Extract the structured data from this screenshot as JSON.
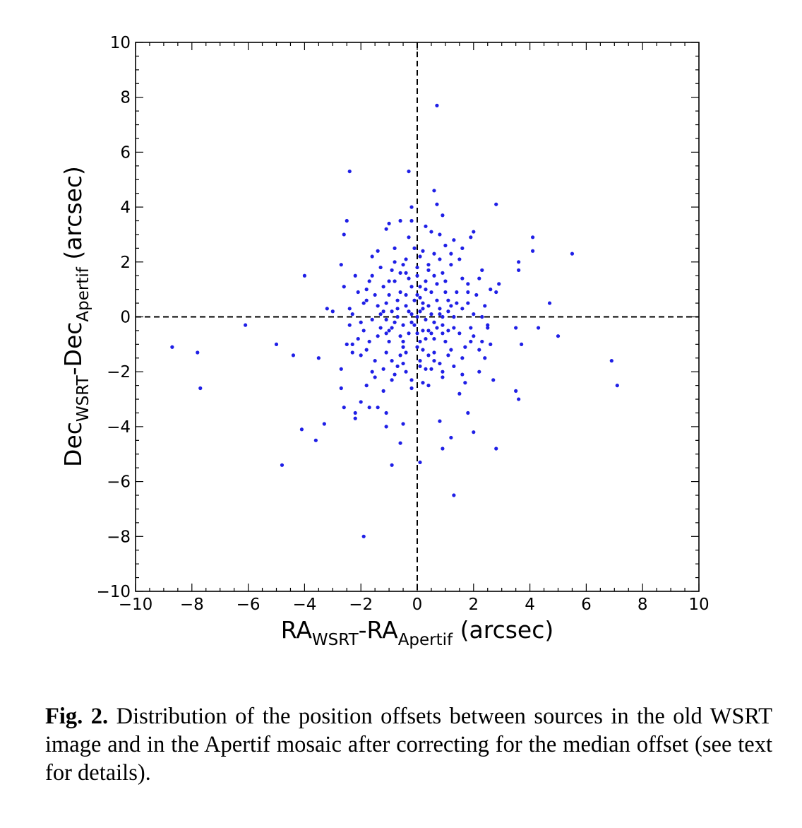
{
  "figure": {
    "caption_label": "Fig. 2.",
    "caption_text": "Distribution of the position offsets between sources in the old WSRT image and in the Apertif mosaic after correcting for the median offset (see text for details)."
  },
  "chart_data": {
    "type": "scatter",
    "xlabel": {
      "main1": "RA",
      "sub1": "WSRT",
      "mid": "-RA",
      "sub2": "Apertif",
      "tail": " (arcsec)"
    },
    "ylabel": {
      "main1": "Dec",
      "sub1": "WSRT",
      "mid": "-Dec",
      "sub2": "Apertif",
      "tail": " (arcsec)"
    },
    "xlim": [
      -10,
      10
    ],
    "ylim": [
      -10,
      10
    ],
    "xticks": [
      -10,
      -8,
      -6,
      -4,
      -2,
      0,
      2,
      4,
      6,
      8,
      10
    ],
    "yticks": [
      -10,
      -8,
      -6,
      -4,
      -2,
      0,
      2,
      4,
      6,
      8,
      10
    ],
    "xtick_labels": [
      "−10",
      "−8",
      "−6",
      "−4",
      "−2",
      "0",
      "2",
      "4",
      "6",
      "8",
      "10"
    ],
    "ytick_labels": [
      "−10",
      "−8",
      "−6",
      "−4",
      "−2",
      "0",
      "2",
      "4",
      "6",
      "8",
      "10"
    ],
    "grid": false,
    "reference_lines": {
      "x": 0,
      "y": 0,
      "style": "dashed"
    },
    "point_color": "#1f1fe6",
    "series": [
      {
        "points": [
          [
            -8.7,
            -1.1
          ],
          [
            -7.8,
            -1.3
          ],
          [
            -7.7,
            -2.6
          ],
          [
            -6.1,
            -0.3
          ],
          [
            -5.0,
            -1.0
          ],
          [
            -4.8,
            -5.4
          ],
          [
            -4.4,
            -1.4
          ],
          [
            -4.1,
            -4.1
          ],
          [
            -4.0,
            1.5
          ],
          [
            -3.6,
            -4.5
          ],
          [
            -3.5,
            -1.5
          ],
          [
            -3.3,
            -3.9
          ],
          [
            -3.2,
            0.3
          ],
          [
            -3.0,
            0.2
          ],
          [
            -2.5,
            3.5
          ],
          [
            -2.6,
            3.0
          ],
          [
            -2.4,
            5.3
          ],
          [
            -2.7,
            1.9
          ],
          [
            -2.7,
            -1.9
          ],
          [
            -2.7,
            -2.6
          ],
          [
            -2.6,
            -3.3
          ],
          [
            -2.2,
            -3.5
          ],
          [
            -2.2,
            -3.7
          ],
          [
            -2.0,
            -3.1
          ],
          [
            -1.9,
            -8.0
          ],
          [
            -1.7,
            -3.3
          ],
          [
            -1.4,
            -3.3
          ],
          [
            -1.1,
            -3.5
          ],
          [
            -1.1,
            -4.0
          ],
          [
            -0.9,
            -5.4
          ],
          [
            -0.6,
            -4.6
          ],
          [
            -0.5,
            -3.9
          ],
          [
            -0.3,
            5.3
          ],
          [
            -0.2,
            4.0
          ],
          [
            -0.2,
            3.5
          ],
          [
            0.6,
            4.6
          ],
          [
            0.7,
            4.1
          ],
          [
            0.7,
            7.7
          ],
          [
            0.9,
            3.7
          ],
          [
            0.9,
            -4.8
          ],
          [
            0.8,
            -3.8
          ],
          [
            1.3,
            -6.5
          ],
          [
            1.2,
            -4.4
          ],
          [
            0.1,
            -5.3
          ],
          [
            1.8,
            -3.5
          ],
          [
            2.0,
            -4.2
          ],
          [
            2.8,
            -4.8
          ],
          [
            2.0,
            3.1
          ],
          [
            1.9,
            2.9
          ],
          [
            2.8,
            4.1
          ],
          [
            2.3,
            1.7
          ],
          [
            2.8,
            0.9
          ],
          [
            2.9,
            1.2
          ],
          [
            2.7,
            -2.3
          ],
          [
            3.5,
            -2.7
          ],
          [
            3.6,
            -3.0
          ],
          [
            3.5,
            -0.4
          ],
          [
            3.6,
            1.7
          ],
          [
            3.6,
            2.0
          ],
          [
            3.7,
            -1.0
          ],
          [
            4.1,
            2.9
          ],
          [
            4.1,
            2.4
          ],
          [
            4.3,
            -0.4
          ],
          [
            4.7,
            0.5
          ],
          [
            5.0,
            -0.7
          ],
          [
            5.5,
            2.3
          ],
          [
            6.9,
            -1.6
          ],
          [
            7.1,
            -2.5
          ],
          [
            -1.6,
            -2.0
          ],
          [
            -1.4,
            2.4
          ],
          [
            -1.1,
            3.2
          ],
          [
            -1.0,
            3.4
          ],
          [
            -0.8,
            2.5
          ],
          [
            -0.6,
            3.5
          ],
          [
            -0.3,
            2.9
          ],
          [
            0.3,
            3.3
          ],
          [
            0.5,
            3.1
          ],
          [
            0.8,
            3.0
          ],
          [
            1.0,
            2.6
          ],
          [
            1.3,
            2.8
          ],
          [
            1.6,
            2.5
          ],
          [
            1.2,
            2.3
          ],
          [
            0.6,
            2.3
          ],
          [
            0.1,
            2.2
          ],
          [
            -0.4,
            2.1
          ],
          [
            -1.9,
            0.5
          ],
          [
            -2.3,
            -1.0
          ],
          [
            -2.0,
            -1.4
          ],
          [
            -1.8,
            -2.5
          ],
          [
            -1.2,
            -2.7
          ],
          [
            -0.9,
            -2.3
          ],
          [
            -0.2,
            -2.6
          ],
          [
            0.4,
            -2.5
          ],
          [
            0.9,
            -2.2
          ],
          [
            1.5,
            -2.8
          ],
          [
            1.7,
            -2.4
          ],
          [
            2.2,
            -2.0
          ],
          [
            2.4,
            -1.5
          ],
          [
            2.3,
            -0.9
          ],
          [
            2.5,
            -0.4
          ],
          [
            0.0,
            0.0
          ],
          [
            0.1,
            0.2
          ],
          [
            -0.2,
            0.1
          ],
          [
            0.3,
            -0.1
          ],
          [
            -0.1,
            -0.3
          ],
          [
            0.2,
            0.5
          ],
          [
            -0.4,
            0.4
          ],
          [
            0.5,
            0.1
          ],
          [
            -0.3,
            -0.6
          ],
          [
            0.4,
            -0.5
          ],
          [
            0.0,
            0.8
          ],
          [
            0.1,
            -0.9
          ],
          [
            -0.7,
            0.0
          ],
          [
            0.8,
            0.3
          ],
          [
            0.6,
            -0.8
          ],
          [
            -0.6,
            0.9
          ],
          [
            -0.9,
            -0.4
          ],
          [
            0.9,
            -0.3
          ],
          [
            -0.2,
            1.1
          ],
          [
            0.3,
            1.0
          ],
          [
            -0.5,
            -1.1
          ],
          [
            0.2,
            -1.2
          ],
          [
            1.1,
            0.6
          ],
          [
            -1.1,
            0.5
          ],
          [
            1.0,
            -0.9
          ],
          [
            -1.0,
            -0.9
          ],
          [
            0.7,
            1.2
          ],
          [
            -0.8,
            1.3
          ],
          [
            0.6,
            -1.3
          ],
          [
            -0.6,
            -1.4
          ],
          [
            1.3,
            0.0
          ],
          [
            -1.3,
            0.1
          ],
          [
            1.4,
            0.9
          ],
          [
            -1.4,
            -0.7
          ],
          [
            1.2,
            -1.2
          ],
          [
            -1.2,
            1.1
          ],
          [
            0.0,
            1.5
          ],
          [
            0.1,
            -1.6
          ],
          [
            1.6,
            0.3
          ],
          [
            -1.6,
            -0.1
          ],
          [
            1.5,
            -0.6
          ],
          [
            -1.5,
            0.8
          ],
          [
            0.9,
            1.6
          ],
          [
            -0.9,
            1.7
          ],
          [
            0.8,
            -1.7
          ],
          [
            -0.9,
            -1.6
          ],
          [
            1.8,
            1.2
          ],
          [
            -1.7,
            1.3
          ],
          [
            1.7,
            -1.1
          ],
          [
            -1.8,
            -1.2
          ],
          [
            0.4,
            1.9
          ],
          [
            -0.5,
            1.9
          ],
          [
            0.3,
            -1.9
          ],
          [
            -0.4,
            -2.0
          ],
          [
            2.0,
            0.1
          ],
          [
            -2.0,
            -0.2
          ],
          [
            2.1,
            0.8
          ],
          [
            -2.1,
            0.9
          ],
          [
            2.0,
            -0.7
          ],
          [
            -2.1,
            -0.8
          ],
          [
            1.2,
            1.9
          ],
          [
            -1.3,
            1.8
          ],
          [
            1.3,
            -1.8
          ],
          [
            -1.2,
            -1.9
          ],
          [
            0.2,
            0.3
          ],
          [
            -0.3,
            0.2
          ],
          [
            0.4,
            0.4
          ],
          [
            -0.1,
            0.6
          ],
          [
            0.6,
            -0.2
          ],
          [
            -0.5,
            -0.3
          ],
          [
            0.2,
            -0.5
          ],
          [
            -0.2,
            -0.2
          ],
          [
            0.7,
            0.6
          ],
          [
            -0.7,
            0.6
          ],
          [
            0.5,
            -0.6
          ],
          [
            -0.6,
            -0.7
          ],
          [
            0.9,
            0.0
          ],
          [
            -0.9,
            0.2
          ],
          [
            0.0,
            -0.6
          ],
          [
            0.1,
            0.7
          ],
          [
            0.3,
            1.3
          ],
          [
            -0.3,
            1.4
          ],
          [
            0.4,
            -1.4
          ],
          [
            -0.4,
            -1.3
          ],
          [
            1.1,
            0.2
          ],
          [
            -1.1,
            -0.1
          ],
          [
            1.0,
            0.9
          ],
          [
            -1.0,
            0.8
          ],
          [
            0.9,
            -0.6
          ],
          [
            -1.0,
            -0.5
          ],
          [
            1.4,
            0.5
          ],
          [
            -1.4,
            0.4
          ],
          [
            1.3,
            -0.4
          ],
          [
            -1.3,
            -0.4
          ],
          [
            0.6,
            1.5
          ],
          [
            -0.6,
            1.6
          ],
          [
            0.6,
            -1.6
          ],
          [
            -0.7,
            -1.8
          ],
          [
            1.6,
            1.4
          ],
          [
            -1.6,
            1.5
          ],
          [
            1.6,
            -1.5
          ],
          [
            -1.5,
            -1.6
          ],
          [
            1.8,
            0.5
          ],
          [
            -1.8,
            0.6
          ],
          [
            1.9,
            -0.4
          ],
          [
            -1.9,
            -0.5
          ],
          [
            0.0,
            1.8
          ],
          [
            0.1,
            -1.8
          ],
          [
            2.2,
            1.4
          ],
          [
            -2.2,
            1.5
          ],
          [
            2.2,
            -1.2
          ],
          [
            -2.3,
            -1.3
          ],
          [
            0.8,
            2.1
          ],
          [
            -0.8,
            2.0
          ],
          [
            0.9,
            -2.0
          ],
          [
            -0.8,
            -2.1
          ],
          [
            2.4,
            0.4
          ],
          [
            -2.4,
            0.3
          ],
          [
            2.5,
            -0.3
          ],
          [
            -2.4,
            -0.3
          ],
          [
            1.5,
            2.1
          ],
          [
            -1.6,
            2.2
          ],
          [
            1.6,
            -2.1
          ],
          [
            -1.5,
            -2.2
          ],
          [
            0.2,
            2.4
          ],
          [
            -0.1,
            2.5
          ],
          [
            0.2,
            -2.4
          ],
          [
            -0.2,
            -2.3
          ],
          [
            2.6,
            1.0
          ],
          [
            -2.6,
            1.1
          ],
          [
            2.6,
            -1.0
          ],
          [
            -2.5,
            -1.0
          ],
          [
            0.5,
            0.9
          ],
          [
            -0.4,
            0.8
          ],
          [
            0.3,
            -0.8
          ],
          [
            -0.5,
            -0.9
          ],
          [
            0.7,
            -0.4
          ],
          [
            -0.7,
            0.3
          ],
          [
            0.8,
            0.1
          ],
          [
            -0.8,
            -0.2
          ],
          [
            0.1,
            1.1
          ],
          [
            0.0,
            -1.1
          ],
          [
            1.2,
            0.4
          ],
          [
            -1.2,
            0.2
          ],
          [
            1.1,
            -0.5
          ],
          [
            -1.1,
            -0.6
          ],
          [
            0.4,
            1.7
          ],
          [
            -0.4,
            1.6
          ],
          [
            0.5,
            -1.9
          ],
          [
            -0.5,
            -1.7
          ],
          [
            1.8,
            0.9
          ],
          [
            -1.8,
            1.0
          ],
          [
            1.9,
            -0.9
          ],
          [
            -1.7,
            -0.9
          ],
          [
            2.3,
            0.0
          ],
          [
            -2.3,
            0.1
          ],
          [
            1.0,
            1.3
          ],
          [
            -1.0,
            1.3
          ],
          [
            1.1,
            -1.4
          ],
          [
            -1.1,
            -1.3
          ]
        ]
      }
    ]
  }
}
